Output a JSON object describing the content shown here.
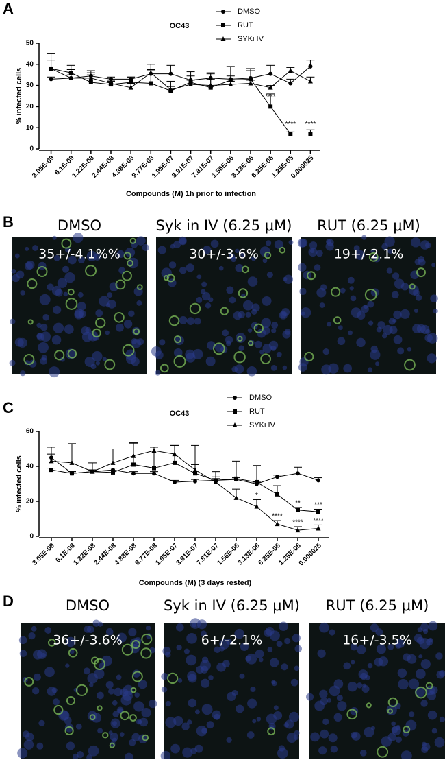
{
  "panel_letters": [
    "A",
    "B",
    "C",
    "D"
  ],
  "chart_data": [
    {
      "type": "line",
      "title": "OC43",
      "x_label": "Compounds (M) 1h prior to infection",
      "y_label": "% infected cells",
      "categories": [
        "3.05E-09",
        "6.1E-09",
        "1.22E-08",
        "2.44E-08",
        "4.88E-08",
        "9.77E-08",
        "1.95E-07",
        "3.91E-07",
        "7.81E-07",
        "1.56E-06",
        "3.13E-06",
        "6.25E-06",
        "1.25E-05",
        "0.000025"
      ],
      "ylim": [
        0,
        50
      ],
      "yticks": [
        0,
        10,
        20,
        30,
        40,
        50
      ],
      "series": [
        {
          "name": "DMSO",
          "marker": "circle",
          "color": "#000000",
          "values": [
            33,
            33.5,
            34.5,
            33,
            33,
            35.5,
            35.5,
            32.5,
            33.5,
            33,
            33.5,
            35.5,
            31,
            39
          ],
          "errors": [
            1,
            1.5,
            1.5,
            1,
            1,
            2,
            4,
            2,
            2,
            1.5,
            4.5,
            4,
            2,
            3
          ]
        },
        {
          "name": "RUT",
          "marker": "square",
          "color": "#000000",
          "values": [
            38,
            36,
            31.5,
            30.5,
            31.5,
            31,
            27.5,
            31.5,
            29,
            32.5,
            33,
            20,
            7,
            7
          ],
          "errors": [
            7,
            3.5,
            5.5,
            2,
            2.5,
            9,
            2,
            5,
            7,
            6.5,
            4,
            6,
            1,
            2
          ]
        },
        {
          "name": "SYKi IV",
          "marker": "triangle",
          "color": "#000000",
          "values": [
            38,
            33.5,
            33.5,
            31,
            29,
            36,
            28,
            30.5,
            30,
            30.5,
            31,
            29,
            37,
            32
          ],
          "errors": [
            4,
            4,
            1.5,
            1,
            2,
            1,
            4,
            2,
            3,
            1.5,
            1.5,
            1,
            1.5,
            2
          ]
        }
      ],
      "annotations": [
        {
          "text": "****",
          "series": "RUT",
          "category": "6.25E-06"
        },
        {
          "text": "****",
          "series": "RUT",
          "category": "1.25E-05"
        },
        {
          "text": "****",
          "series": "RUT",
          "category": "0.000025"
        }
      ]
    },
    {
      "type": "line",
      "title": "OC43",
      "x_label": "Compounds (M) (3 days rested)",
      "y_label": "% infected cells",
      "categories": [
        "3.05E-09",
        "6.1E-09",
        "1.22E-08",
        "2.44E-08",
        "4.88E-08",
        "9.77E-08",
        "1.95E-07",
        "3.91E-07",
        "7.81E-07",
        "1.56E-06",
        "3.13E-06",
        "6.25E-06",
        "1.25E-05",
        "0.000025"
      ],
      "ylim": [
        0,
        60
      ],
      "yticks": [
        0,
        20,
        40,
        60
      ],
      "series": [
        {
          "name": "DMSO",
          "marker": "circle",
          "color": "#000000",
          "values": [
            45,
            36,
            37,
            38,
            36,
            36,
            31,
            31.5,
            32,
            32.5,
            30,
            34,
            36,
            32
          ],
          "errors": [
            2,
            1,
            1,
            1,
            1,
            1,
            1,
            1,
            1,
            1,
            1,
            1,
            3.5,
            1.5
          ]
        },
        {
          "name": "RUT",
          "marker": "square",
          "color": "#000000",
          "values": [
            38,
            36,
            37,
            36.5,
            41,
            39,
            42,
            36,
            32,
            33,
            31,
            24,
            15,
            14
          ],
          "errors": [
            1,
            1,
            1,
            1,
            12,
            11,
            10,
            16,
            5,
            10,
            9.5,
            5,
            1.5,
            1.5
          ]
        },
        {
          "name": "SYKi IV",
          "marker": "triangle",
          "color": "#000000",
          "values": [
            43,
            42,
            37,
            42,
            46,
            49,
            47,
            38,
            31,
            22,
            17,
            7,
            3.5,
            4.5
          ],
          "errors": [
            8,
            11,
            5,
            8,
            7.5,
            2,
            5,
            3,
            3,
            5,
            4,
            2,
            2,
            2
          ]
        }
      ],
      "annotations": [
        {
          "text": "*",
          "series": "SYKi IV",
          "category": "3.13E-06"
        },
        {
          "text": "****",
          "series": "SYKi IV",
          "category": "6.25E-06"
        },
        {
          "text": "**",
          "series": "RUT",
          "category": "1.25E-05"
        },
        {
          "text": "****",
          "series": "SYKi IV",
          "category": "1.25E-05"
        },
        {
          "text": "***",
          "series": "RUT",
          "category": "0.000025"
        },
        {
          "text": "****",
          "series": "SYKi IV",
          "category": "0.000025"
        }
      ]
    }
  ],
  "image_rows": [
    {
      "panels": [
        {
          "title": "DMSO",
          "overlay": "35+/-4.1%%"
        },
        {
          "title": "Syk in IV (6.25 μM)",
          "overlay": "30+/-3.6%"
        },
        {
          "title": "RUT (6.25 μM)",
          "overlay": "19+/-2.1%"
        }
      ]
    },
    {
      "panels": [
        {
          "title": "DMSO",
          "overlay": "36+/-3.6%"
        },
        {
          "title": "Syk in IV (6.25 μM)",
          "overlay": "6+/-2.1%"
        },
        {
          "title": "RUT (6.25 μM)",
          "overlay": "16+/-3.5%"
        }
      ]
    }
  ]
}
